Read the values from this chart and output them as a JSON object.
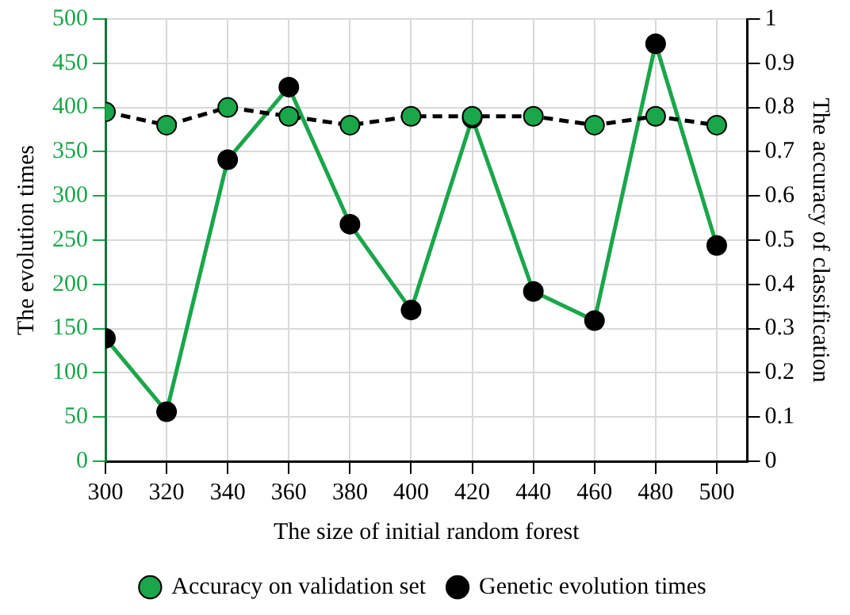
{
  "chart_data": {
    "type": "line",
    "xlabel": "The size of initial random forest",
    "ylabel": "The evolution times",
    "y2label": "The accuracy of classification",
    "x": [
      300,
      320,
      340,
      360,
      380,
      400,
      420,
      440,
      460,
      480,
      500
    ],
    "xlim": [
      300,
      510
    ],
    "xticks": [
      300,
      320,
      340,
      360,
      380,
      400,
      420,
      440,
      460,
      480,
      500
    ],
    "ylim": [
      0,
      500
    ],
    "yticks": [
      0,
      50,
      100,
      150,
      200,
      250,
      300,
      350,
      400,
      450,
      500
    ],
    "y2lim": [
      0,
      1
    ],
    "y2ticks": [
      0,
      0.1,
      0.2,
      0.3,
      0.4,
      0.5,
      0.6,
      0.7,
      0.8,
      0.9,
      1
    ],
    "grid": true,
    "legend": "bottom",
    "marker": "circle",
    "series": [
      {
        "name": "Genetic evolution times",
        "color": "#1aa64a",
        "line_style": "solid",
        "values": [
          139,
          56,
          341,
          423,
          268,
          171,
          388,
          192,
          159,
          472,
          244
        ]
      },
      {
        "name": "Accuracy on validation set",
        "color": "#000000",
        "line_style": "dashed",
        "axis": "y2",
        "values": [
          0.79,
          0.76,
          0.8,
          0.78,
          0.76,
          0.78,
          0.78,
          0.78,
          0.76,
          0.78,
          0.76
        ]
      }
    ]
  }
}
